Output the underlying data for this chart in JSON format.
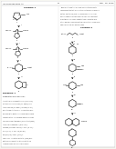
{
  "background_color": "#f5f5f0",
  "page_bg": "#ffffff",
  "text_color": "#1a1a1a",
  "line_color": "#222222",
  "gray_text": "#444444",
  "header_left": "US 20130060034 A1",
  "header_right": "Mar. 10, 2013",
  "page_number": "11",
  "left_scheme_title": "Scheme 1",
  "right_scheme_title": "Scheme 2",
  "example_title": "Example 1",
  "figsize": [
    1.28,
    1.65
  ],
  "dpi": 100
}
